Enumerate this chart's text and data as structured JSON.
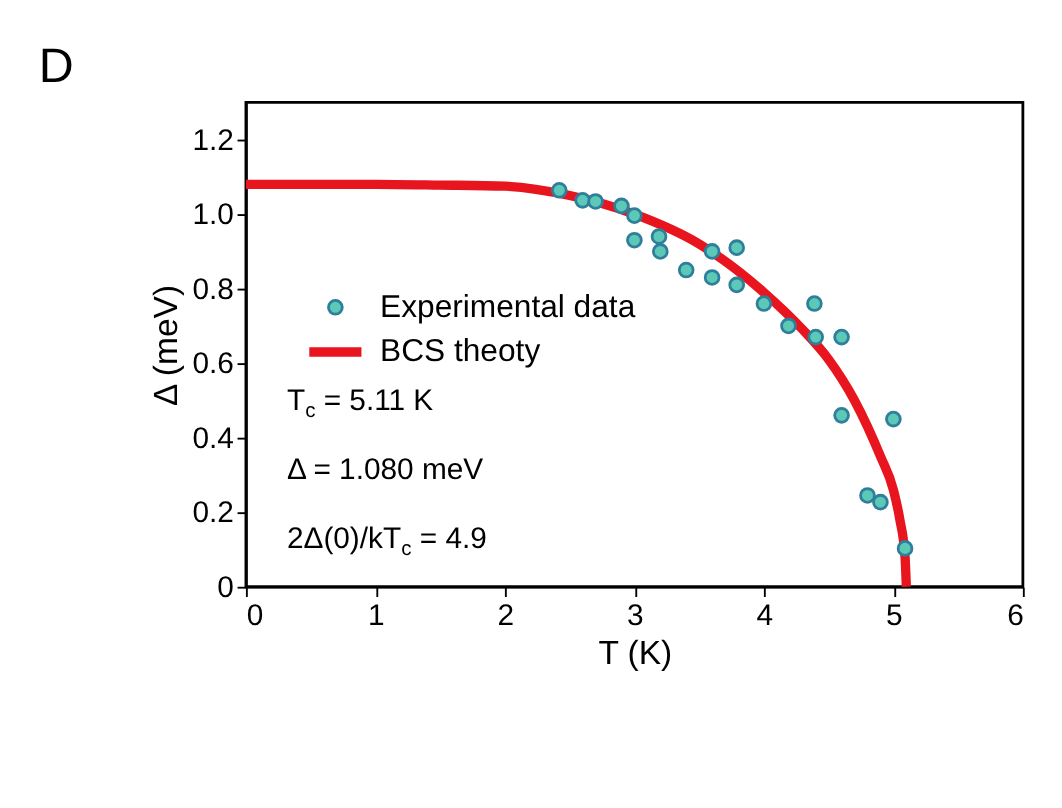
{
  "chart_data": {
    "type": "scatter",
    "title": "D",
    "xlabel": "T (K)",
    "ylabel": "Δ (meV)",
    "xlim": [
      0,
      6
    ],
    "ylim": [
      0,
      1.3
    ],
    "xticks": [
      0,
      1,
      2,
      3,
      4,
      5,
      6
    ],
    "yticks": [
      0,
      0.2,
      0.4,
      0.6,
      0.8,
      {
        "value": 1,
        "label": "1.0"
      },
      1.2
    ],
    "grid": false,
    "legend": "left",
    "series": [
      {
        "name": "Experimental data",
        "marker": "circle",
        "color": "#5cc8b8",
        "x": [
          2.42,
          2.6,
          2.7,
          2.9,
          3.0,
          3.0,
          3.19,
          3.2,
          3.4,
          3.6,
          3.6,
          3.79,
          3.79,
          4.0,
          4.19,
          4.39,
          4.4,
          4.6,
          4.6,
          5.0,
          4.8,
          4.9,
          5.09
        ],
        "values": [
          1.064,
          1.037,
          1.034,
          1.022,
          0.996,
          0.93,
          0.94,
          0.9,
          0.85,
          0.9,
          0.83,
          0.91,
          0.81,
          0.76,
          0.7,
          0.76,
          0.67,
          0.67,
          0.46,
          0.45,
          0.245,
          0.227,
          0.103
        ]
      },
      {
        "name": "BCS theoty",
        "type": "line",
        "marker": "none",
        "line_style": "solid",
        "color": "#e8141e",
        "x": [
          0,
          1,
          1.5,
          2,
          2.5,
          3,
          3.5,
          4,
          4.3,
          4.5,
          4.7,
          4.9,
          5.0,
          5.05,
          5.09,
          5.1
        ],
        "values": [
          1.08,
          1.08,
          1.078,
          1.075,
          1.05,
          1.0,
          0.92,
          0.79,
          0.69,
          0.61,
          0.5,
          0.35,
          0.26,
          0.18,
          0.08,
          0
        ]
      }
    ],
    "annotations": [
      "T$_{c}$ = 5.11 K",
      "Δ = 1.080 meV",
      "2Δ(0)/kT$_{c}$ = 4.9"
    ]
  }
}
